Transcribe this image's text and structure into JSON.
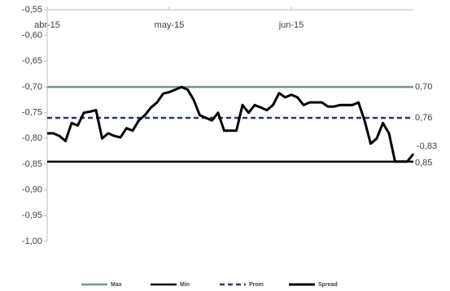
{
  "chart_data": {
    "type": "line",
    "categories": [
      "abr-15",
      null,
      null,
      null,
      null,
      null,
      null,
      null,
      null,
      null,
      null,
      null,
      null,
      null,
      null,
      null,
      null,
      null,
      null,
      null,
      "may-15",
      null,
      null,
      null,
      null,
      null,
      null,
      null,
      null,
      null,
      null,
      null,
      null,
      null,
      null,
      null,
      null,
      null,
      null,
      null,
      "jun-15",
      null,
      null,
      null,
      null,
      null,
      null,
      null,
      null,
      null,
      null,
      null,
      null,
      null,
      null,
      null,
      null,
      null,
      null,
      null,
      null
    ],
    "ylim": [
      -1.0,
      -0.55
    ],
    "yticks": [
      {
        "value": -1.0,
        "label": "-1,00"
      },
      {
        "value": -0.95,
        "label": "-0,95"
      },
      {
        "value": -0.9,
        "label": "-0,90"
      },
      {
        "value": -0.85,
        "label": "-0,85"
      },
      {
        "value": -0.8,
        "label": "-0,80"
      },
      {
        "value": -0.75,
        "label": "-0,75"
      },
      {
        "value": -0.7,
        "label": "-0,70"
      },
      {
        "value": -0.65,
        "label": "-0,65"
      },
      {
        "value": -0.6,
        "label": "-0,60"
      },
      {
        "value": -0.55,
        "label": "-0,55"
      }
    ],
    "series": [
      {
        "name": "Max",
        "color": "#74958c",
        "value": -0.7,
        "value_label": "0,70",
        "label_color": "#000000",
        "dash": false
      },
      {
        "name": "Min",
        "color": "#000000",
        "value": -0.845,
        "value_label": "0,85",
        "label_color": "#2e6b2e",
        "dash": false
      },
      {
        "name": "Prom",
        "color": "#1f3a72",
        "value": -0.76,
        "value_label": "0,76",
        "label_color": "#3a48a0",
        "dash": true
      },
      {
        "name": "Spread",
        "color": "#000000",
        "values": [
          -0.79,
          -0.79,
          -0.795,
          -0.805,
          -0.77,
          -0.775,
          -0.75,
          -0.748,
          -0.745,
          -0.8,
          -0.79,
          -0.795,
          -0.798,
          -0.78,
          -0.785,
          -0.765,
          -0.755,
          -0.74,
          -0.73,
          -0.713,
          -0.71,
          -0.705,
          -0.7,
          -0.705,
          -0.725,
          -0.755,
          -0.76,
          -0.765,
          -0.75,
          -0.785,
          -0.785,
          -0.785,
          -0.735,
          -0.75,
          -0.735,
          -0.74,
          -0.745,
          -0.735,
          -0.712,
          -0.72,
          -0.715,
          -0.72,
          -0.735,
          -0.73,
          -0.73,
          -0.73,
          -0.738,
          -0.738,
          -0.735,
          -0.735,
          -0.735,
          -0.73,
          -0.765,
          -0.81,
          -0.8,
          -0.77,
          -0.79,
          -0.845,
          -0.845,
          -0.845,
          -0.83
        ],
        "value_labels": [
          null,
          null,
          null,
          null,
          null,
          null,
          null,
          null,
          null,
          null,
          null,
          null,
          null,
          null,
          null,
          null,
          null,
          null,
          null,
          null,
          null,
          null,
          null,
          null,
          null,
          null,
          null,
          null,
          null,
          null,
          null,
          null,
          null,
          null,
          null,
          null,
          null,
          null,
          null,
          null,
          null,
          null,
          null,
          null,
          null,
          null,
          null,
          null,
          null,
          null,
          null,
          null,
          null,
          null,
          null,
          null,
          null,
          null,
          null,
          null,
          "-0,83"
        ],
        "label_color": "#000000"
      }
    ]
  }
}
